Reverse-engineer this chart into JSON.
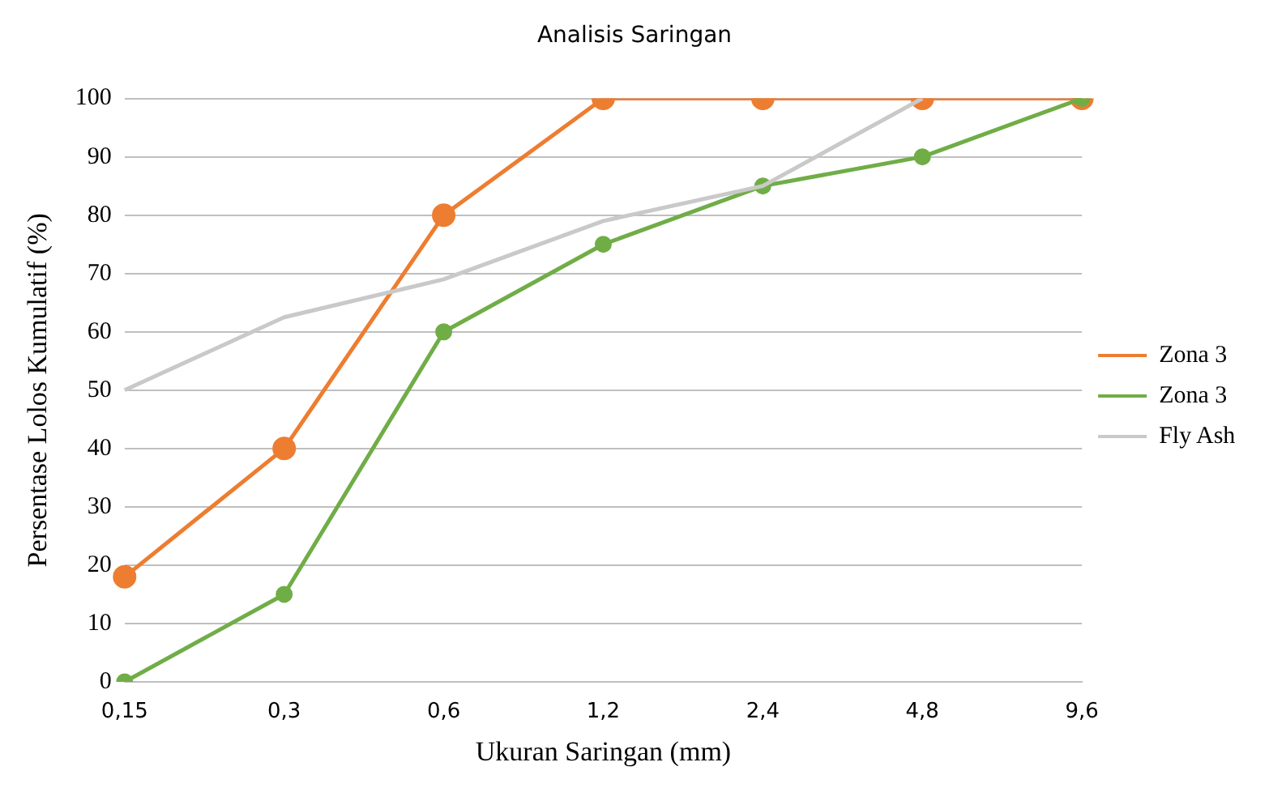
{
  "chart_data": {
    "type": "line",
    "title": "Analisis Saringan",
    "xlabel": "Ukuran Saringan (mm)",
    "ylabel": "Persentase Lolos Kumulatif (%)",
    "categories": [
      "0,15",
      "0,3",
      "0,6",
      "1,2",
      "2,4",
      "4,8",
      "9,6"
    ],
    "series": [
      {
        "name": "Zona 3",
        "color": "#ed7d31",
        "marker": "circle",
        "values": [
          18,
          40,
          80,
          100,
          100,
          100,
          100
        ]
      },
      {
        "name": "Zona 3",
        "color": "#70ad47",
        "marker": "circle",
        "values": [
          0,
          15,
          60,
          75,
          85,
          90,
          100
        ]
      },
      {
        "name": "Fly Ash",
        "color": "#c9c9c9",
        "marker": "none",
        "values": [
          50,
          62.5,
          69,
          79,
          85,
          100,
          null
        ]
      }
    ],
    "ylim": [
      0,
      100
    ],
    "yticks": [
      0,
      10,
      20,
      30,
      40,
      50,
      60,
      70,
      80,
      90,
      100
    ],
    "grid": "y",
    "legend": "right"
  }
}
